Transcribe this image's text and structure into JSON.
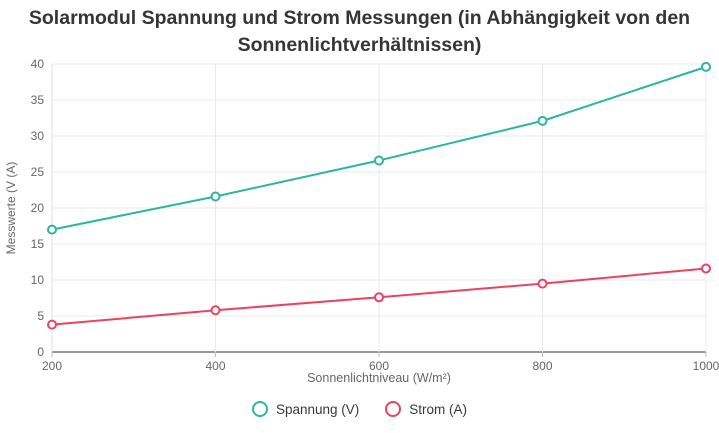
{
  "title": "Solarmodul Spannung und Strom Messungen (in Abhängigkeit von den Sonnenlichtverhältnissen)",
  "chart_data": {
    "type": "line",
    "title": "Solarmodul Spannung und Strom Messungen (in Abhängigkeit von den Sonnenlichtverhältnissen)",
    "xlabel": "Sonnenlichtniveau (W/m²)",
    "ylabel": "Messwerte (V (A)",
    "x": [
      200,
      400,
      600,
      800,
      1000
    ],
    "x_tick_labels": [
      "200",
      "400",
      "600",
      "800",
      "1000"
    ],
    "y_ticks": [
      0,
      5,
      10,
      15,
      20,
      25,
      30,
      35,
      40
    ],
    "xlim": [
      200,
      1000
    ],
    "ylim": [
      0,
      40
    ],
    "grid": true,
    "legend_position": "bottom",
    "marker_style": "open-circle",
    "series": [
      {
        "name": "Spannung (V)",
        "color": "#2ab5a4",
        "values": [
          17.0,
          21.6,
          26.6,
          32.1,
          39.6
        ]
      },
      {
        "name": "Strom (A)",
        "color": "#ec4260",
        "values": [
          3.8,
          5.8,
          7.6,
          9.5,
          11.6
        ]
      }
    ],
    "colors": {
      "grid": "#e9e9e9",
      "axis_line": "#757575",
      "tick_text": "#666666",
      "title_text": "#353535"
    }
  }
}
